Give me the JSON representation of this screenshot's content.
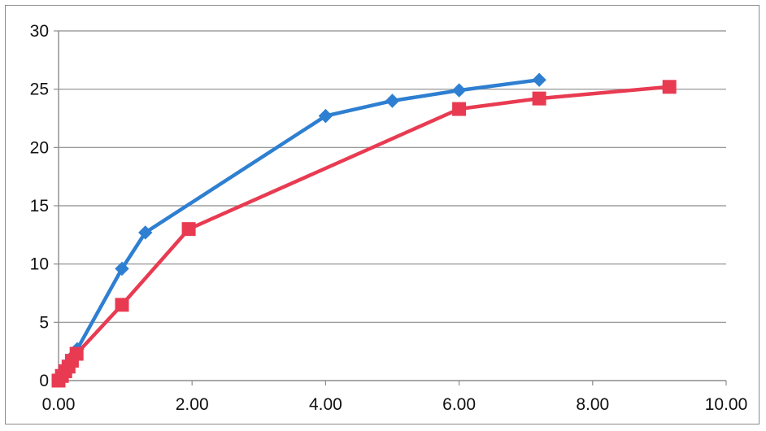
{
  "chart_data": {
    "type": "line",
    "title": "",
    "xlabel": "",
    "ylabel": "",
    "xlim": [
      0,
      10
    ],
    "ylim": [
      0,
      30
    ],
    "x_ticks": [
      0,
      2,
      4,
      6,
      8,
      10
    ],
    "x_tick_labels": [
      "0.00",
      "2.00",
      "4.00",
      "6.00",
      "8.00",
      "10.00"
    ],
    "y_ticks": [
      0,
      5,
      10,
      15,
      20,
      25,
      30
    ],
    "y_tick_labels": [
      "0",
      "5",
      "10",
      "15",
      "20",
      "25",
      "30"
    ],
    "grid": true,
    "legend": "none",
    "series": [
      {
        "color": "#2e7fd1",
        "marker": "diamond",
        "x": [
          0.0,
          0.05,
          0.1,
          0.15,
          0.2,
          0.28,
          0.95,
          1.3,
          4.0,
          5.0,
          6.0,
          7.2
        ],
        "y": [
          0.0,
          0.5,
          1.0,
          1.5,
          2.0,
          2.7,
          9.6,
          12.7,
          22.7,
          24.0,
          24.9,
          25.8
        ]
      },
      {
        "color": "#e83b52",
        "marker": "square",
        "x": [
          0.0,
          0.05,
          0.1,
          0.15,
          0.2,
          0.27,
          0.95,
          1.95,
          6.0,
          7.2,
          9.15
        ],
        "y": [
          0.0,
          0.4,
          0.8,
          1.2,
          1.7,
          2.3,
          6.5,
          13.0,
          23.3,
          24.2,
          25.2
        ]
      }
    ]
  }
}
